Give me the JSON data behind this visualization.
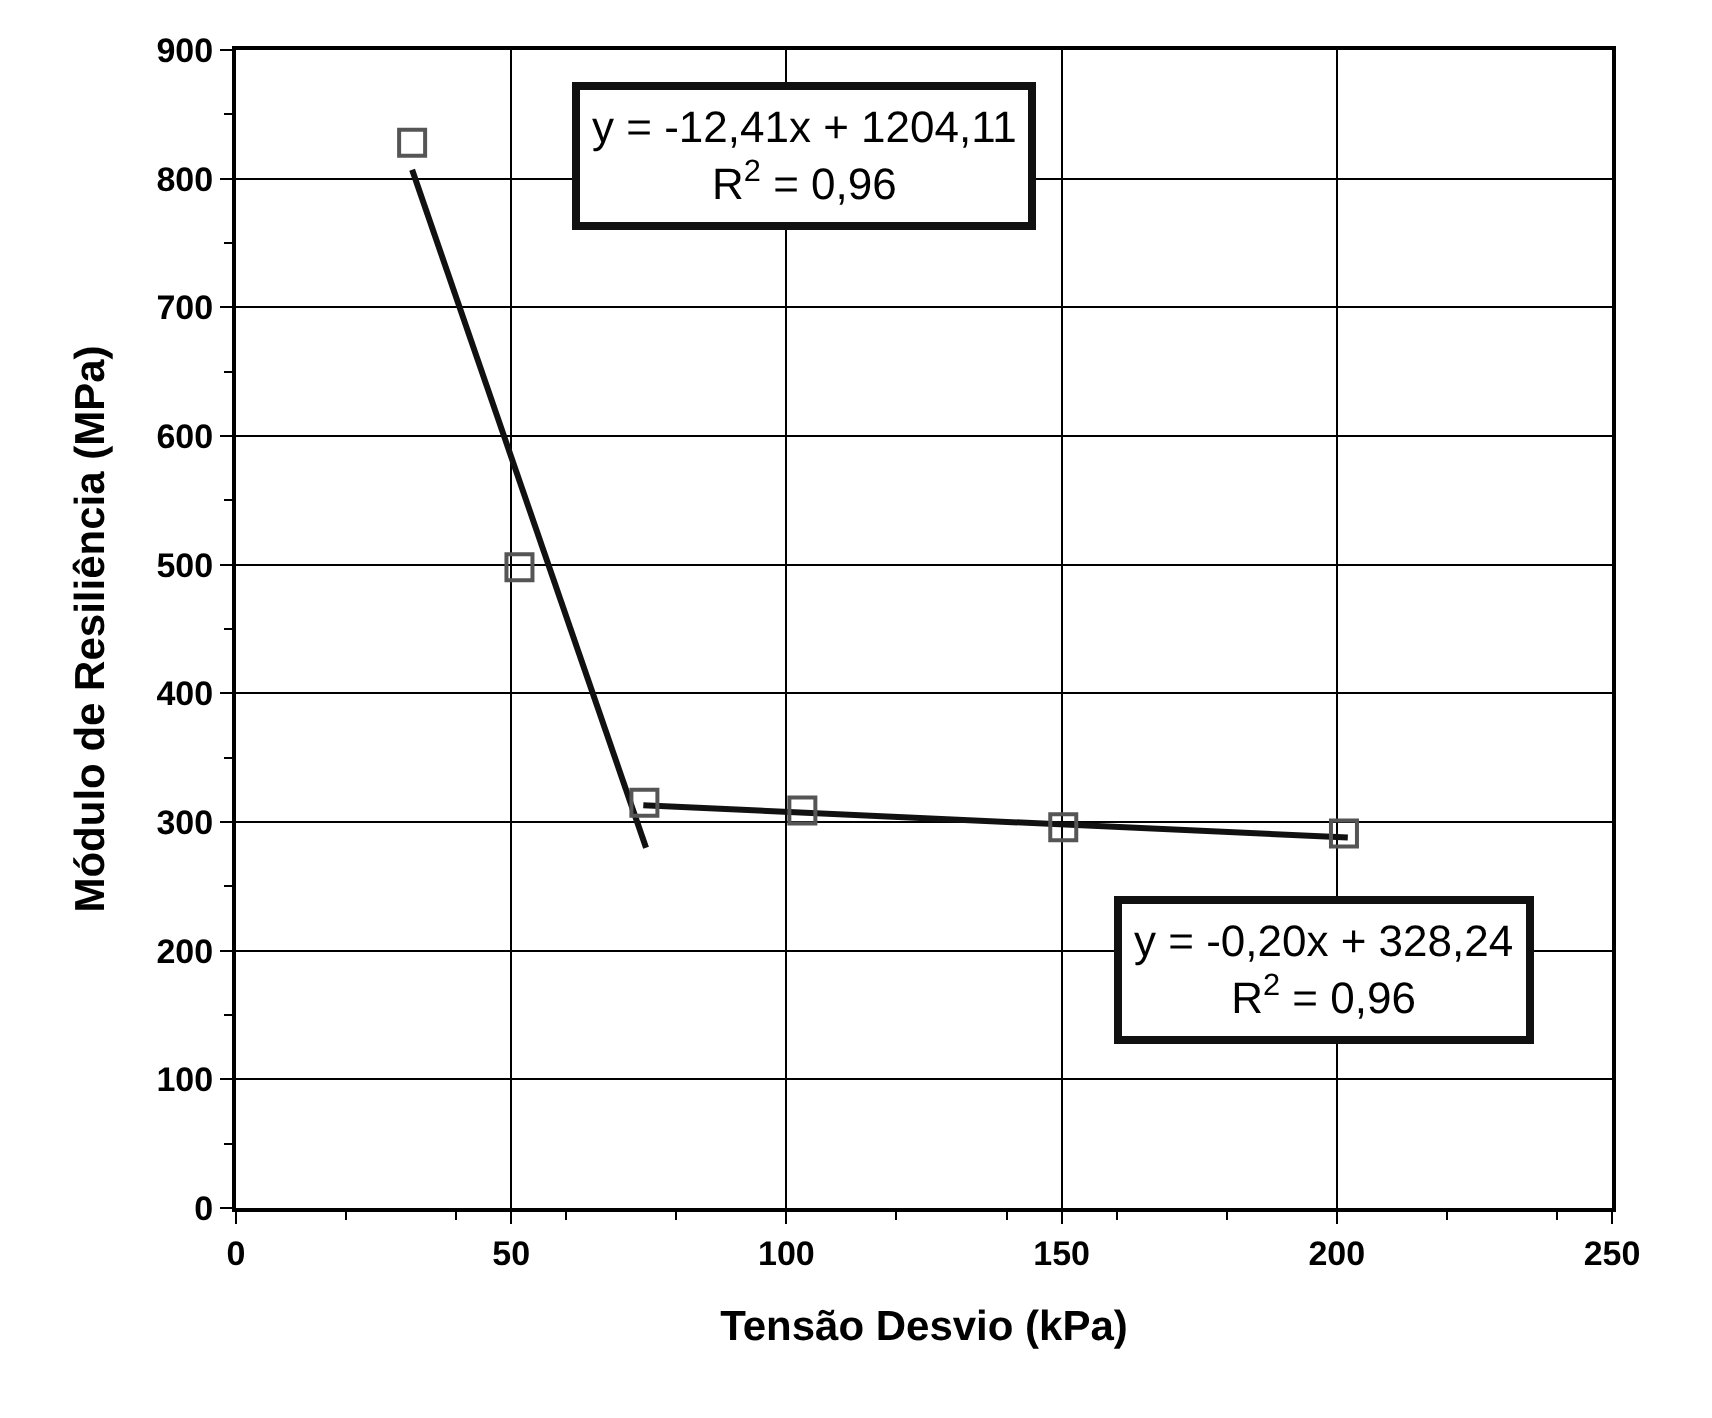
{
  "chart_data": {
    "type": "scatter",
    "xlabel": "Tensão Desvio (kPa)",
    "ylabel": "Módulo de Resiliência (MPa)",
    "xlim": [
      0,
      250
    ],
    "xticks": [
      0,
      50,
      100,
      150,
      200,
      250
    ],
    "ylim": [
      0,
      900
    ],
    "yticks": [
      0,
      100,
      200,
      300,
      400,
      500,
      600,
      700,
      800,
      900
    ],
    "grid": true,
    "marker": "square",
    "legend": false,
    "series": [
      {
        "color": "#555555",
        "x": [
          32,
          51.5,
          74.2,
          102.9,
          150.3,
          201.3
        ],
        "values": [
          828,
          498,
          315,
          309,
          296,
          291
        ]
      },
      {
        "type": "line",
        "marker": "none",
        "color": "#111111",
        "x": [
          32,
          74.5
        ],
        "values": [
          807,
          280
        ]
      },
      {
        "type": "line",
        "marker": "none",
        "color": "#111111",
        "x": [
          74,
          202
        ],
        "values": [
          313,
          288
        ]
      }
    ],
    "annotations": [
      "y = -12,41x + 1204,11\nR$^{2}$ = 0,96",
      "y = -0,20x + 328,24\nR$^{2}$ = 0,96"
    ]
  }
}
